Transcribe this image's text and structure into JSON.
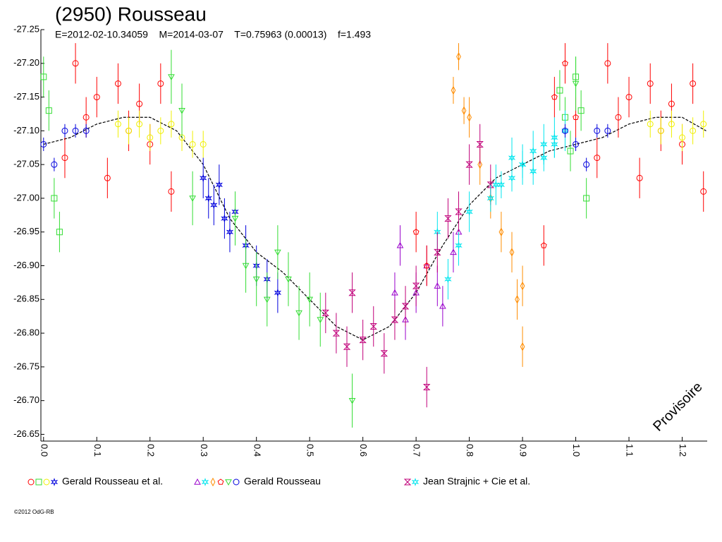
{
  "chart_data": {
    "type": "scatter",
    "title": "(2950) Rousseau",
    "subtitle": "E=2012-02-10.34059    M=2014-03-07    T=0.75963 (0.00013)    f=1.493",
    "annotation": "Provisoire",
    "footer": "©2012 OdG-RB",
    "y_inverted": true,
    "xlim": [
      -0.005,
      1.247
    ],
    "ylim": [
      -27.25,
      -26.64
    ],
    "xticks": [
      {
        "value": 0,
        "label": "0.0"
      },
      0.1,
      0.2,
      0.3,
      0.4,
      0.5,
      0.6,
      0.7,
      0.8,
      0.9,
      {
        "value": 1,
        "label": "1.0"
      },
      1.1,
      1.2
    ],
    "yticks": [
      -27.25,
      {
        "value": -27.2,
        "label": "-27.20"
      },
      -27.15,
      {
        "value": -27.1,
        "label": "-27.10"
      },
      -27.05,
      {
        "value": -27,
        "label": "-27.00"
      },
      -26.95,
      {
        "value": -26.9,
        "label": "-26.90"
      },
      -26.85,
      {
        "value": -26.8,
        "label": "-26.80"
      },
      -26.75,
      {
        "value": -26.7,
        "label": "-26.70"
      },
      -26.65
    ],
    "fit": {
      "color": "#000000",
      "x": [
        0,
        0.05,
        0.1,
        0.15,
        0.2,
        0.25,
        0.3,
        0.35,
        0.4,
        0.45,
        0.5,
        0.55,
        0.6,
        0.65,
        0.7,
        0.75,
        0.8,
        0.85,
        0.9,
        0.95,
        1.0,
        1.05,
        1.1,
        1.15,
        1.2,
        1.245
      ],
      "values": [
        -27.08,
        -27.09,
        -27.11,
        -27.12,
        -27.12,
        -27.1,
        -27.05,
        -26.97,
        -26.92,
        -26.89,
        -26.85,
        -26.81,
        -26.79,
        -26.81,
        -26.86,
        -26.93,
        -26.99,
        -27.03,
        -27.05,
        -27.07,
        -27.08,
        -27.09,
        -27.11,
        -27.12,
        -27.12,
        -27.1
      ]
    },
    "groups": [
      {
        "name": "Gerald Rousseau et al.",
        "series": [
          {
            "color": "#ff0000",
            "marker": "circle",
            "x": [
              0.04,
              0.06,
              0.08,
              0.1,
              0.12,
              0.14,
              0.16,
              0.18,
              0.2,
              0.22,
              0.24,
              1.04,
              1.06,
              1.08,
              1.1,
              1.12,
              1.14,
              1.16,
              1.18,
              1.2,
              1.22,
              1.24
            ],
            "values": [
              -27.06,
              -27.2,
              -27.12,
              -27.15,
              -27.03,
              -27.17,
              -27.1,
              -27.14,
              -27.08,
              -27.17,
              -27.01,
              -27.06,
              -27.2,
              -27.12,
              -27.15,
              -27.03,
              -27.17,
              -27.1,
              -27.14,
              -27.08,
              -27.17,
              -27.01
            ],
            "errors": [
              0.03,
              0.03,
              0.03,
              0.03,
              0.03,
              0.03,
              0.03,
              0.03,
              0.03,
              0.03,
              0.03,
              0.03,
              0.03,
              0.03,
              0.03,
              0.03,
              0.03,
              0.03,
              0.03,
              0.03,
              0.03,
              0.03
            ]
          },
          {
            "color": "#33dd33",
            "marker": "square",
            "x": [
              0.0,
              0.01,
              0.02,
              0.03,
              0.97,
              0.98,
              0.99,
              1.0,
              1.01,
              1.02
            ],
            "values": [
              -27.18,
              -27.13,
              -27.0,
              -26.95,
              -27.16,
              -27.12,
              -27.07,
              -27.18,
              -27.13,
              -27.0
            ],
            "errors": [
              0.03,
              0.03,
              0.03,
              0.03,
              0.03,
              0.03,
              0.03,
              0.03,
              0.03,
              0.03
            ]
          },
          {
            "color": "#f0f000",
            "marker": "circle",
            "x": [
              0.14,
              0.16,
              0.18,
              0.2,
              0.22,
              0.24,
              0.26,
              0.28,
              0.3,
              1.14,
              1.16,
              1.18,
              1.2,
              1.22,
              1.24
            ],
            "values": [
              -27.11,
              -27.1,
              -27.11,
              -27.09,
              -27.1,
              -27.11,
              -27.09,
              -27.08,
              -27.08,
              -27.11,
              -27.1,
              -27.11,
              -27.09,
              -27.1,
              -27.11
            ],
            "errors": [
              0.02,
              0.02,
              0.02,
              0.02,
              0.02,
              0.02,
              0.02,
              0.02,
              0.02,
              0.02,
              0.02,
              0.02,
              0.02,
              0.02,
              0.02
            ]
          },
          {
            "color": "#0000dd",
            "marker": "star",
            "x": [
              0.3,
              0.31,
              0.32,
              0.33,
              0.34,
              0.35,
              0.36,
              0.38,
              0.4,
              0.42,
              0.44
            ],
            "values": [
              -27.03,
              -27.0,
              -26.99,
              -27.02,
              -26.97,
              -26.95,
              -26.98,
              -26.93,
              -26.9,
              -26.88,
              -26.86
            ],
            "errors": [
              0.03,
              0.03,
              0.03,
              0.03,
              0.03,
              0.03,
              0.03,
              0.03,
              0.03,
              0.03,
              0.03
            ]
          }
        ]
      },
      {
        "name": "Gerald Rousseau",
        "series": [
          {
            "color": "#9900cc",
            "marker": "triangle",
            "x": [
              0.66,
              0.67,
              0.68,
              0.7,
              0.72,
              0.74,
              0.75,
              0.77,
              0.78
            ],
            "values": [
              -26.86,
              -26.93,
              -26.82,
              -26.86,
              -26.9,
              -26.87,
              -26.84,
              -26.92,
              -26.95
            ],
            "errors": [
              0.03,
              0.03,
              0.03,
              0.03,
              0.03,
              0.03,
              0.03,
              0.03,
              0.03
            ]
          },
          {
            "color": "#00e5ee",
            "marker": "star",
            "x": [
              0.74,
              0.76,
              0.78,
              0.8,
              0.85,
              0.88,
              0.9,
              0.92,
              0.94,
              0.96,
              0.98
            ],
            "values": [
              -26.95,
              -26.88,
              -26.93,
              -26.98,
              -27.02,
              -27.06,
              -27.05,
              -27.07,
              -27.08,
              -27.09,
              -27.1
            ],
            "errors": [
              0.03,
              0.03,
              0.03,
              0.03,
              0.03,
              0.03,
              0.03,
              0.03,
              0.03,
              0.03,
              0.03
            ]
          },
          {
            "color": "#ff8c00",
            "marker": "diamond",
            "x": [
              0.77,
              0.78,
              0.79,
              0.8,
              0.82,
              0.84,
              0.86,
              0.88,
              0.89,
              0.9,
              0.9
            ],
            "values": [
              -27.16,
              -27.21,
              -27.13,
              -27.12,
              -27.05,
              -27.0,
              -26.95,
              -26.92,
              -26.85,
              -26.87,
              -26.78
            ],
            "errors": [
              0.02,
              0.02,
              0.02,
              0.03,
              0.03,
              0.03,
              0.03,
              0.03,
              0.03,
              0.03,
              0.03
            ]
          },
          {
            "color": "#ff0000",
            "marker": "pentagon",
            "x": [
              0.7,
              0.72,
              0.94,
              0.96,
              0.98,
              1.0
            ],
            "values": [
              -26.95,
              -26.9,
              -26.93,
              -27.15,
              -27.2,
              -27.12
            ],
            "errors": [
              0.03,
              0.03,
              0.03,
              0.03,
              0.03,
              0.03
            ]
          },
          {
            "color": "#33dd33",
            "marker": "triangle-down",
            "x": [
              0.24,
              0.26,
              0.28,
              0.36,
              0.38,
              0.4,
              0.42,
              0.44,
              0.46,
              0.48,
              0.5,
              0.52,
              0.58,
              1.0
            ],
            "values": [
              -27.18,
              -27.13,
              -27.0,
              -26.97,
              -26.9,
              -26.88,
              -26.85,
              -26.92,
              -26.88,
              -26.83,
              -26.85,
              -26.82,
              -26.7,
              -27.17
            ],
            "errors": [
              0.04,
              0.04,
              0.04,
              0.04,
              0.04,
              0.04,
              0.04,
              0.04,
              0.04,
              0.04,
              0.04,
              0.04,
              0.04,
              0.04
            ]
          },
          {
            "color": "#0000dd",
            "marker": "circle",
            "x": [
              0.0,
              0.02,
              0.04,
              0.06,
              0.08,
              0.98,
              1.0,
              1.02,
              1.04,
              1.06
            ],
            "values": [
              -27.08,
              -27.05,
              -27.1,
              -27.1,
              -27.1,
              -27.1,
              -27.08,
              -27.05,
              -27.1,
              -27.1
            ],
            "errors": [
              0.01,
              0.01,
              0.01,
              0.01,
              0.01,
              0.01,
              0.01,
              0.01,
              0.01,
              0.01
            ]
          }
        ]
      },
      {
        "name": "Jean Strajnic + Cie et al.",
        "series": [
          {
            "color": "#c0007a",
            "marker": "bowtie",
            "x": [
              0.53,
              0.55,
              0.57,
              0.58,
              0.6,
              0.62,
              0.64,
              0.66,
              0.68,
              0.7,
              0.72,
              0.74,
              0.76,
              0.78,
              0.8,
              0.82,
              0.84
            ],
            "values": [
              -26.83,
              -26.8,
              -26.78,
              -26.86,
              -26.79,
              -26.81,
              -26.77,
              -26.82,
              -26.84,
              -26.87,
              -26.72,
              -26.92,
              -26.97,
              -26.98,
              -27.05,
              -27.08,
              -27.02
            ],
            "errors": [
              0.03,
              0.03,
              0.03,
              0.03,
              0.03,
              0.03,
              0.03,
              0.03,
              0.03,
              0.03,
              0.03,
              0.03,
              0.03,
              0.03,
              0.03,
              0.03,
              0.03
            ]
          },
          {
            "color": "#00e5ee",
            "marker": "star",
            "x": [
              0.84,
              0.86,
              0.88,
              0.9,
              0.92,
              0.94,
              0.96
            ],
            "values": [
              -27.0,
              -27.02,
              -27.03,
              -27.05,
              -27.04,
              -27.06,
              -27.08
            ],
            "errors": [
              0.02,
              0.02,
              0.02,
              0.02,
              0.02,
              0.02,
              0.02
            ]
          }
        ]
      }
    ]
  }
}
